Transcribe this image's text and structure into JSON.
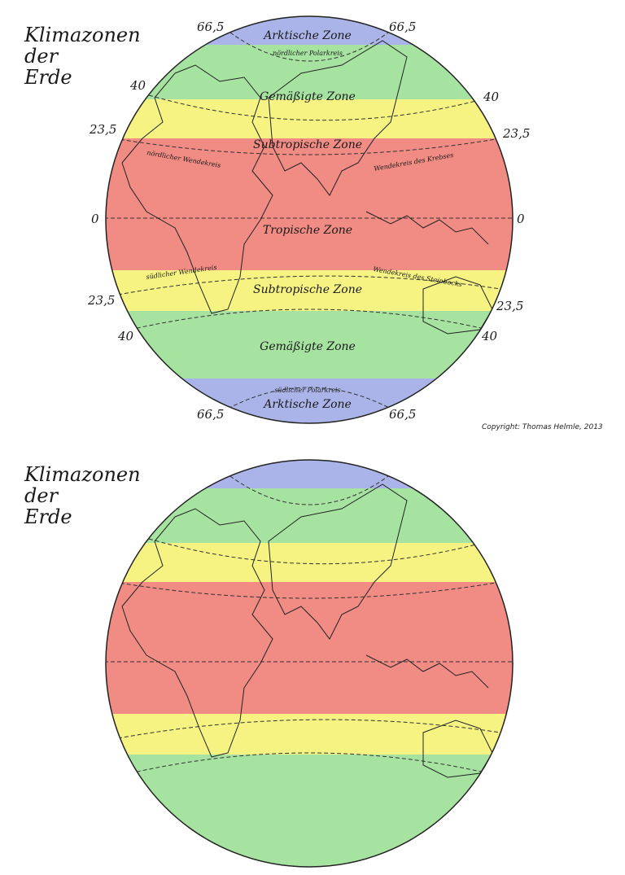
{
  "title_lines": [
    "Klimazonen",
    "der",
    "Erde"
  ],
  "colors": {
    "arctic": "#aab4e8",
    "temperate": "#a6e3a1",
    "subtropical": "#f6f383",
    "tropical": "#f08c84"
  },
  "globe_top": {
    "zones": {
      "arctic_top": "Arktische Zone",
      "temperate_top": "Gemäßigte Zone",
      "subtropical_top": "Subtropische Zone",
      "tropical": "Tropische Zone",
      "subtropical_bottom": "Subtropische Zone",
      "temperate_bottom": "Gemäßigte Zone",
      "arctic_bottom": "Arktische Zone"
    },
    "lines": {
      "polar_north": "nördlicher Polarkreis",
      "tropic_north_left": "nördlicher Wendekreis",
      "tropic_north_right": "Wendekreis des Krebses",
      "tropic_south_left": "südlicher Wendekreis",
      "tropic_south_right": "Wendekreis des Steinbocks",
      "polar_south": "südlicher Polarkreis"
    },
    "latitudes": {
      "top_left_665": "66,5",
      "top_right_665": "66,5",
      "left_40_n": "40",
      "right_40_n": "40",
      "left_235_n": "23,5",
      "right_235_n": "23,5",
      "left_0": "0",
      "right_0": "0",
      "left_235_s": "23,5",
      "right_235_s": "23,5",
      "left_40_s": "40",
      "right_40_s": "40",
      "bottom_left_665": "66,5",
      "bottom_right_665": "66,5"
    }
  },
  "copyright": "Copyright: Thomas Helmle, 2013"
}
